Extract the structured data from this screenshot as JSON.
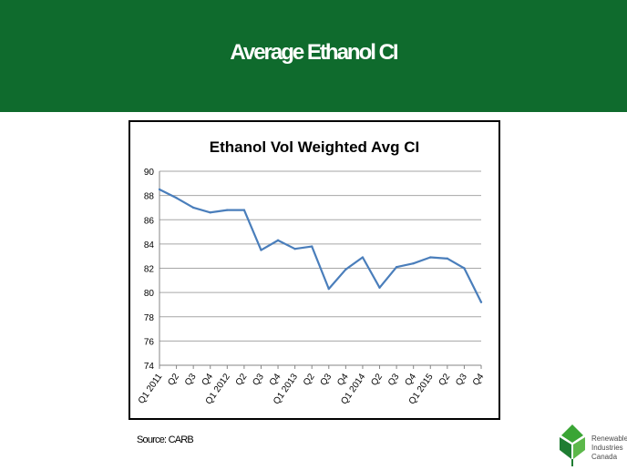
{
  "slide": {
    "title": "Average Ethanol CI",
    "source": "Source: CARB",
    "colors": {
      "banner": "#0f6b2d",
      "line": "#4a7ebb",
      "grid": "#a6a6a6"
    }
  },
  "logo": {
    "lines": [
      "Renewable",
      "Industries",
      "Canada"
    ],
    "icon": "green-leaf-logo-icon"
  },
  "chart_data": {
    "type": "line",
    "title": "Ethanol Vol Weighted Avg CI",
    "xlabel": "",
    "ylabel": "",
    "ylim": [
      74,
      90
    ],
    "yticks": [
      74,
      76,
      78,
      80,
      82,
      84,
      86,
      88,
      90
    ],
    "grid": true,
    "legend": "none",
    "categories": [
      "Q1 2011",
      "Q2",
      "Q3",
      "Q4",
      "Q1 2012",
      "Q2",
      "Q3",
      "Q4",
      "Q1 2013",
      "Q2",
      "Q3",
      "Q4",
      "Q1 2014",
      "Q2",
      "Q3",
      "Q4",
      "Q1 2015",
      "Q2",
      "Q3",
      "Q4"
    ],
    "series": [
      {
        "values": [
          88.5,
          87.8,
          87.0,
          86.6,
          86.8,
          86.8,
          83.5,
          84.3,
          83.6,
          83.8,
          80.3,
          81.9,
          82.9,
          80.4,
          82.1,
          82.4,
          82.9,
          82.8,
          82.0,
          79.2
        ]
      }
    ]
  }
}
